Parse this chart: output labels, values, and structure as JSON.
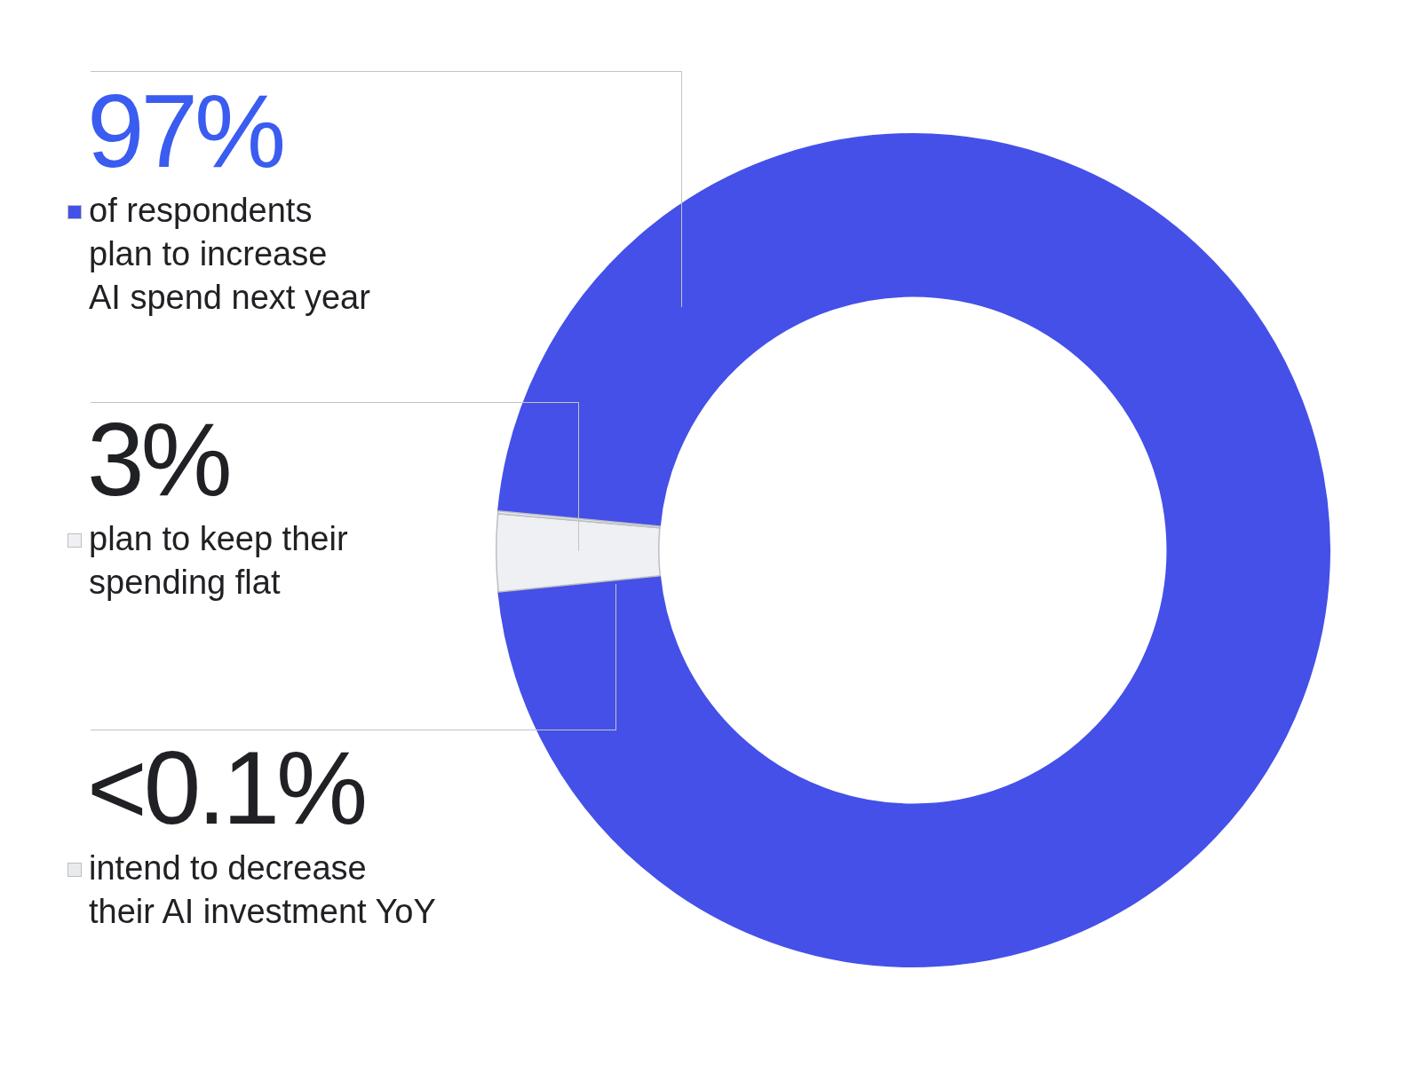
{
  "chart_data": {
    "type": "donut",
    "categories": [
      "of respondents\nplan to increase\nAI spend next year",
      "plan to keep their\nspending flat",
      "intend to decrease\ntheir AI investment YoY"
    ],
    "values": [
      97,
      3,
      0.1
    ],
    "value_labels": [
      "97%",
      "3%",
      "<0.1%"
    ],
    "colors": [
      "#4450e8",
      "#eff0f4",
      "#e9eaee"
    ],
    "legend": "left"
  }
}
